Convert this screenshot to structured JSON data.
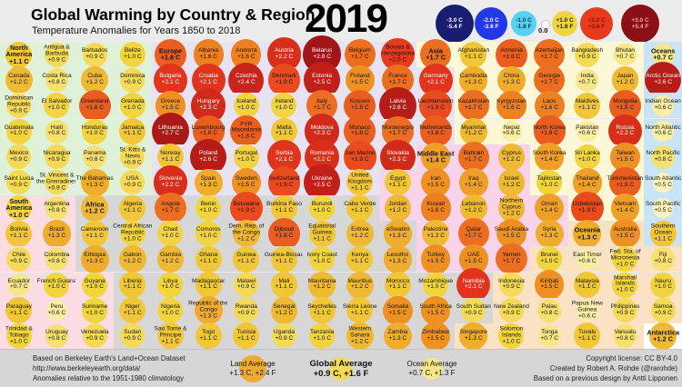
{
  "header": {
    "title": "Global Warming by Country & Region",
    "subtitle": "Temperature Anomalies for Years 1850 to 2018",
    "year": "2019"
  },
  "legend": {
    "zero_label": "0.0",
    "items": [
      {
        "value": -3.0,
        "label_c": "-3.0 C",
        "label_f": "-5.4 F",
        "text_color": "#ffffff"
      },
      {
        "value": -2.0,
        "label_c": "-2.0 C",
        "label_f": "-3.6 F",
        "text_color": "#ffffff"
      },
      {
        "value": -1.0,
        "label_c": "-1.0 C",
        "label_f": "-1.8 F",
        "text_color": "#10324a"
      },
      {
        "value": 0.0,
        "label_c": "",
        "label_f": "",
        "text_color": "#111111"
      },
      {
        "value": 1.0,
        "label_c": "+1.0 C",
        "label_f": "+1.8 F",
        "text_color": "#222222"
      },
      {
        "value": 2.0,
        "label_c": "+2.0 C",
        "label_f": "+3.6 F",
        "text_color": "#7c1210"
      },
      {
        "value": 3.0,
        "label_c": "+3.0 C",
        "label_f": "+5.4 F",
        "text_color": "#f2a896"
      }
    ]
  },
  "chart_data": {
    "type": "heatmap",
    "title": "Global Warming by Country & Region",
    "subtitle": "Temperature Anomalies for Years 1850 to 2018",
    "year": "2019",
    "unit": "degrees C anomaly relative to 1951-1980 climatology",
    "cols": 18,
    "rows": 12,
    "legend_values": [
      -3,
      -2,
      -1,
      0,
      1,
      2,
      3
    ],
    "scale_stops": [
      [
        -3.0,
        "#181d72"
      ],
      [
        -2.0,
        "#2038e8"
      ],
      [
        -1.0,
        "#56d2f2"
      ],
      [
        0.0,
        "#ffffff"
      ],
      [
        0.5,
        "#fcf4bb"
      ],
      [
        1.0,
        "#f2d43e"
      ],
      [
        1.5,
        "#ee9122"
      ],
      [
        2.0,
        "#e83a1d"
      ],
      [
        2.5,
        "#c11f18"
      ],
      [
        3.0,
        "#8b1016"
      ]
    ],
    "regions": {
      "na": {
        "name": "North America",
        "bg": "#dff1d6"
      },
      "sa": {
        "name": "South America",
        "bg": "#fbdce2"
      },
      "eu": {
        "name": "Europe",
        "bg": "#e7e3f3"
      },
      "af": {
        "name": "Africa",
        "bg": "#d7d7d7"
      },
      "as": {
        "name": "Asia",
        "bg": "#fbf7d7"
      },
      "me": {
        "name": "Middle East",
        "bg": "#f8d3e9"
      },
      "oce": {
        "name": "Oceania",
        "bg": "#fbe2c4"
      },
      "oc": {
        "name": "Oceans",
        "bg": "#c9e4f7"
      },
      "ant": {
        "name": "Antarctica",
        "bg": "#ffffff"
      }
    },
    "cells": [
      [
        "North America",
        1.1,
        "na",
        1
      ],
      [
        "Antigua & Barbuda",
        0.9,
        "na",
        0
      ],
      [
        "Barbados",
        0.9,
        "na",
        0
      ],
      [
        "Belize",
        1.0,
        "na",
        0
      ],
      [
        "Europe",
        1.8,
        "eu",
        1
      ],
      [
        "Albania",
        1.6,
        "eu",
        0
      ],
      [
        "Andorra",
        1.6,
        "eu",
        0
      ],
      [
        "Austria",
        2.2,
        "eu",
        0
      ],
      [
        "Belarus",
        2.8,
        "eu",
        0
      ],
      [
        "Belgium",
        1.7,
        "eu",
        0
      ],
      [
        "Bosnia & Herzegovina",
        2.0,
        "eu",
        0
      ],
      [
        "Asia",
        1.7,
        "as",
        1
      ],
      [
        "Afghanistan",
        1.1,
        "as",
        0
      ],
      [
        "Armenia",
        1.8,
        "as",
        0
      ],
      [
        "Azerbaijan",
        1.7,
        "as",
        0
      ],
      [
        "Bangladesh",
        0.9,
        "as",
        0
      ],
      [
        "Bhutan",
        0.7,
        "as",
        0
      ],
      [
        "Oceans",
        0.7,
        "oc",
        1
      ],
      [
        "Canada",
        1.2,
        "na",
        0
      ],
      [
        "Costa Rica",
        0.8,
        "na",
        0
      ],
      [
        "Cuba",
        1.2,
        "na",
        0
      ],
      [
        "Dominica",
        0.9,
        "na",
        0
      ],
      [
        "Bulgaria",
        2.1,
        "eu",
        0
      ],
      [
        "Croatia",
        2.1,
        "eu",
        0
      ],
      [
        "Czechia",
        2.4,
        "eu",
        0
      ],
      [
        "Denmark",
        1.9,
        "eu",
        0
      ],
      [
        "Estonia",
        2.5,
        "eu",
        0
      ],
      [
        "Finland",
        1.5,
        "eu",
        0
      ],
      [
        "France",
        1.7,
        "eu",
        0
      ],
      [
        "Germany",
        2.1,
        "eu",
        0
      ],
      [
        "Cambodia",
        1.3,
        "as",
        0
      ],
      [
        "China",
        1.3,
        "as",
        0
      ],
      [
        "Georgia",
        1.7,
        "as",
        0
      ],
      [
        "India",
        0.7,
        "as",
        0
      ],
      [
        "Japan",
        1.2,
        "as",
        0
      ],
      [
        "Arctic Ocean",
        2.6,
        "oc",
        0
      ],
      [
        "Dominican Republic",
        0.9,
        "na",
        0
      ],
      [
        "El Salvador",
        1.0,
        "na",
        0
      ],
      [
        "Greenland",
        1.8,
        "na",
        0
      ],
      [
        "Grenada",
        1.0,
        "na",
        0
      ],
      [
        "Greece",
        1.5,
        "eu",
        0
      ],
      [
        "Hungary",
        2.3,
        "eu",
        0
      ],
      [
        "Iceland",
        1.0,
        "eu",
        0
      ],
      [
        "Ireland",
        1.0,
        "eu",
        0
      ],
      [
        "Italy",
        1.7,
        "eu",
        0
      ],
      [
        "Kosovo",
        1.8,
        "eu",
        0
      ],
      [
        "Latvia",
        2.6,
        "eu",
        0
      ],
      [
        "Liechtenstein",
        1.9,
        "eu",
        0
      ],
      [
        "Kazakhstan",
        1.7,
        "as",
        0
      ],
      [
        "Kyrgyzstan",
        1.6,
        "as",
        0
      ],
      [
        "Laos",
        1.6,
        "as",
        0
      ],
      [
        "Maldives",
        1.1,
        "as",
        0
      ],
      [
        "Mongolia",
        1.8,
        "as",
        0
      ],
      [
        "Indian Ocean",
        0.6,
        "oc",
        0
      ],
      [
        "Guatemala",
        1.0,
        "na",
        0
      ],
      [
        "Haiti",
        0.8,
        "na",
        0
      ],
      [
        "Honduras",
        1.0,
        "na",
        0
      ],
      [
        "Jamaica",
        1.1,
        "na",
        0
      ],
      [
        "Lithuania",
        2.7,
        "eu",
        0
      ],
      [
        "Luxembourg",
        1.8,
        "eu",
        0
      ],
      [
        "FYR Macedonia",
        1.8,
        "eu",
        0
      ],
      [
        "Malta",
        1.1,
        "eu",
        0
      ],
      [
        "Moldova",
        2.3,
        "eu",
        0
      ],
      [
        "Monaco",
        1.8,
        "eu",
        0
      ],
      [
        "Montenegro",
        1.7,
        "eu",
        0
      ],
      [
        "Netherlands",
        1.8,
        "eu",
        0
      ],
      [
        "Myanmar",
        1.2,
        "as",
        0
      ],
      [
        "Nepal",
        0.6,
        "as",
        0
      ],
      [
        "North Korea",
        1.8,
        "as",
        0
      ],
      [
        "Pakistan",
        0.6,
        "as",
        0
      ],
      [
        "Russia",
        2.2,
        "as",
        0
      ],
      [
        "North Atlantic",
        0.6,
        "oc",
        0
      ],
      [
        "Mexico",
        0.9,
        "na",
        0
      ],
      [
        "Nicaragua",
        0.9,
        "na",
        0
      ],
      [
        "Panama",
        0.8,
        "na",
        0
      ],
      [
        "St. Kitts & Nevis",
        0.9,
        "na",
        0
      ],
      [
        "Norway",
        1.1,
        "eu",
        0
      ],
      [
        "Poland",
        2.6,
        "eu",
        0
      ],
      [
        "Portugal",
        1.0,
        "eu",
        0
      ],
      [
        "Serbia",
        2.1,
        "eu",
        0
      ],
      [
        "Romania",
        2.2,
        "eu",
        0
      ],
      [
        "San Marino",
        1.9,
        "eu",
        0
      ],
      [
        "Slovakia",
        2.3,
        "eu",
        0
      ],
      [
        "Middle East",
        1.4,
        "me",
        1
      ],
      [
        "Bahrain",
        1.7,
        "me",
        0
      ],
      [
        "Cyprus",
        1.2,
        "me",
        0
      ],
      [
        "South Korea",
        1.4,
        "as",
        0
      ],
      [
        "Sri Lanka",
        1.0,
        "as",
        0
      ],
      [
        "Taiwan",
        1.5,
        "as",
        0
      ],
      [
        "North Pacific",
        0.8,
        "oc",
        0
      ],
      [
        "Saint Lucia",
        0.9,
        "na",
        0
      ],
      [
        "St. Vincent & the Grenadines",
        0.9,
        "na",
        0
      ],
      [
        "The Bahamas",
        1.3,
        "na",
        0
      ],
      [
        "USA",
        0.9,
        "na",
        0
      ],
      [
        "Slovenia",
        2.2,
        "eu",
        0
      ],
      [
        "Spain",
        1.3,
        "eu",
        0
      ],
      [
        "Sweden",
        1.5,
        "eu",
        0
      ],
      [
        "Switzerland",
        1.9,
        "eu",
        0
      ],
      [
        "Ukraine",
        2.5,
        "eu",
        0
      ],
      [
        "United Kingdom",
        1.1,
        "eu",
        0
      ],
      [
        "Egypt",
        1.1,
        "me",
        0
      ],
      [
        "Iran",
        1.5,
        "me",
        0
      ],
      [
        "Iraq",
        1.4,
        "me",
        0
      ],
      [
        "Israel",
        1.2,
        "me",
        0
      ],
      [
        "Tajikistan",
        1.0,
        "as",
        0
      ],
      [
        "Thailand",
        1.4,
        "as",
        0
      ],
      [
        "Turkmenistan",
        1.8,
        "as",
        0
      ],
      [
        "South Atlantic",
        0.5,
        "oc",
        0
      ],
      [
        "South America",
        1.0,
        "sa",
        1
      ],
      [
        "Argentina",
        0.8,
        "sa",
        0
      ],
      [
        "Africa",
        1.2,
        "af",
        1
      ],
      [
        "Algeria",
        1.1,
        "af",
        0
      ],
      [
        "Angola",
        1.7,
        "af",
        0
      ],
      [
        "Benin",
        1.0,
        "af",
        0
      ],
      [
        "Botswana",
        1.9,
        "af",
        0
      ],
      [
        "Burkina Faso",
        1.1,
        "af",
        0
      ],
      [
        "Burundi",
        1.0,
        "af",
        0
      ],
      [
        "Cabo Verde",
        1.1,
        "af",
        0
      ],
      [
        "Jordan",
        1.2,
        "me",
        0
      ],
      [
        "Kuwait",
        1.6,
        "me",
        0
      ],
      [
        "Lebanon",
        1.2,
        "me",
        0
      ],
      [
        "Northern Cyprus",
        1.2,
        "me",
        0
      ],
      [
        "Oman",
        1.4,
        "me",
        0
      ],
      [
        "Uzbekistan",
        1.9,
        "as",
        0
      ],
      [
        "Vietnam",
        1.4,
        "as",
        0
      ],
      [
        "South Pacific",
        0.5,
        "oc",
        0
      ],
      [
        "Bolivia",
        1.1,
        "sa",
        0
      ],
      [
        "Brazil",
        1.3,
        "sa",
        0
      ],
      [
        "Cameroon",
        1.1,
        "af",
        0
      ],
      [
        "Central African Republic",
        1.0,
        "af",
        0
      ],
      [
        "Chad",
        1.0,
        "af",
        0
      ],
      [
        "Comoros",
        1.0,
        "af",
        0
      ],
      [
        "Dem. Rep. of the Congo",
        1.2,
        "af",
        0
      ],
      [
        "Djibouti",
        1.8,
        "af",
        0
      ],
      [
        "Equatorial Guinea",
        1.1,
        "af",
        0
      ],
      [
        "Eritrea",
        1.2,
        "af",
        0
      ],
      [
        "eSwatini",
        1.3,
        "af",
        0
      ],
      [
        "Palestine",
        1.2,
        "me",
        0
      ],
      [
        "Qatar",
        1.7,
        "me",
        0
      ],
      [
        "Saudi Arabia",
        1.5,
        "me",
        0
      ],
      [
        "Syria",
        1.3,
        "me",
        0
      ],
      [
        "Oceania",
        1.3,
        "oce",
        1
      ],
      [
        "Australia",
        1.5,
        "oce",
        0
      ],
      [
        "Southern Ocean",
        1.1,
        "oc",
        0
      ],
      [
        "Chile",
        0.9,
        "sa",
        0
      ],
      [
        "Colombia",
        0.8,
        "sa",
        0
      ],
      [
        "Ethiopia",
        1.3,
        "af",
        0
      ],
      [
        "Gabon",
        1.2,
        "af",
        0
      ],
      [
        "Gambia",
        1.2,
        "af",
        0
      ],
      [
        "Ghana",
        1.1,
        "af",
        0
      ],
      [
        "Guinea",
        1.1,
        "af",
        0
      ],
      [
        "Guinea-Bissau",
        1.1,
        "af",
        0
      ],
      [
        "Ivory Coast",
        1.0,
        "af",
        0
      ],
      [
        "Kenya",
        1.1,
        "af",
        0
      ],
      [
        "Lesotho",
        1.3,
        "af",
        0
      ],
      [
        "Turkey",
        1.5,
        "me",
        0
      ],
      [
        "UAE",
        1.5,
        "me",
        0
      ],
      [
        "Yemen",
        1.7,
        "me",
        0
      ],
      [
        "Brunei",
        1.0,
        "oce",
        0
      ],
      [
        "East Timor",
        0.6,
        "oce",
        0
      ],
      [
        "Fed. Sta. of Micronesia",
        1.0,
        "oce",
        0
      ],
      [
        "Fiji",
        0.8,
        "oce",
        0
      ],
      [
        "Ecuador",
        0.7,
        "sa",
        0
      ],
      [
        "French Guiana",
        1.0,
        "sa",
        0
      ],
      [
        "Guyana",
        1.0,
        "sa",
        0
      ],
      [
        "Liberia",
        1.1,
        "af",
        0
      ],
      [
        "Libya",
        1.0,
        "af",
        0
      ],
      [
        "Madagascar",
        1.1,
        "af",
        0
      ],
      [
        "Malawi",
        0.9,
        "af",
        0
      ],
      [
        "Mali",
        1.1,
        "af",
        0
      ],
      [
        "Mauritania",
        1.2,
        "af",
        0
      ],
      [
        "Mauritius",
        1.2,
        "af",
        0
      ],
      [
        "Morocco",
        1.1,
        "af",
        0
      ],
      [
        "Mozambique",
        1.0,
        "af",
        0
      ],
      [
        "Namibia",
        2.1,
        "af",
        0
      ],
      [
        "Indonesia",
        0.9,
        "oce",
        0
      ],
      [
        "Kiribati",
        1.5,
        "oce",
        0
      ],
      [
        "Malaysia",
        1.1,
        "oce",
        0
      ],
      [
        "Marshall Islands",
        1.0,
        "oce",
        0
      ],
      [
        "Nauru",
        1.0,
        "oce",
        0
      ],
      [
        "Paraguay",
        1.1,
        "sa",
        0
      ],
      [
        "Peru",
        0.6,
        "sa",
        0
      ],
      [
        "Suriname",
        1.0,
        "sa",
        0
      ],
      [
        "Niger",
        1.1,
        "af",
        0
      ],
      [
        "Nigeria",
        1.0,
        "af",
        0
      ],
      [
        "Republic of the Congo",
        1.3,
        "af",
        0
      ],
      [
        "Rwanda",
        0.9,
        "af",
        0
      ],
      [
        "Senegal",
        1.2,
        "af",
        0
      ],
      [
        "Seychelles",
        1.1,
        "af",
        0
      ],
      [
        "Sierra Leone",
        1.1,
        "af",
        0
      ],
      [
        "Somalia",
        1.5,
        "af",
        0
      ],
      [
        "South Africa",
        1.5,
        "af",
        0
      ],
      [
        "South Sudan",
        0.9,
        "af",
        0
      ],
      [
        "New Zealand",
        0.9,
        "oce",
        0
      ],
      [
        "Palau",
        0.8,
        "oce",
        0
      ],
      [
        "Papua New Guinea",
        0.6,
        "oce",
        0
      ],
      [
        "Philippines",
        0.9,
        "oce",
        0
      ],
      [
        "Samoa",
        0.9,
        "oce",
        0
      ],
      [
        "Trinidad & Tobago",
        1.0,
        "sa",
        0
      ],
      [
        "Uruguay",
        0.8,
        "sa",
        0
      ],
      [
        "Venezuela",
        0.9,
        "sa",
        0
      ],
      [
        "Sudan",
        0.9,
        "af",
        0
      ],
      [
        "Sao Tome & Principe",
        1.1,
        "af",
        0
      ],
      [
        "Togo",
        1.1,
        "af",
        0
      ],
      [
        "Tunisia",
        1.1,
        "af",
        0
      ],
      [
        "Uganda",
        0.9,
        "af",
        0
      ],
      [
        "Tanzania",
        1.0,
        "af",
        0
      ],
      [
        "Western Sahara",
        1.2,
        "af",
        0
      ],
      [
        "Zambia",
        1.3,
        "af",
        0
      ],
      [
        "Zimbabwe",
        1.5,
        "af",
        0
      ],
      [
        "Singapore",
        1.3,
        "oce",
        0
      ],
      [
        "Solomon Islands",
        1.0,
        "oce",
        0
      ],
      [
        "Tonga",
        0.7,
        "oce",
        0
      ],
      [
        "Tuvalu",
        1.1,
        "oce",
        0
      ],
      [
        "Vanuatu",
        0.8,
        "oce",
        0
      ],
      [
        "Antarctica",
        1.2,
        "ant",
        1
      ]
    ]
  },
  "footer": {
    "source_lines": [
      "Based on Berkeley Earth's Land+Ocean Dataset",
      "http://www.berkeleyearth.org/data/",
      "Anomalies relative to the 1951-1980 climatology"
    ],
    "credit_lines": [
      "Copyright license: CC BY-4.0",
      "Created by Robert A. Rohde (@rarohde)",
      "Based on a previous design by Antti Lipponen"
    ],
    "averages": {
      "land": {
        "label": "Land Average",
        "value": "+1.3 C, +2.4 F",
        "value_c": 1.3
      },
      "global": {
        "label": "Global Average",
        "value": "+0.9 C, +1.6 F",
        "value_c": 0.9
      },
      "ocean": {
        "label": "Ocean Average",
        "value": "+0.7 C, +1.3 F",
        "value_c": 0.7
      }
    }
  }
}
